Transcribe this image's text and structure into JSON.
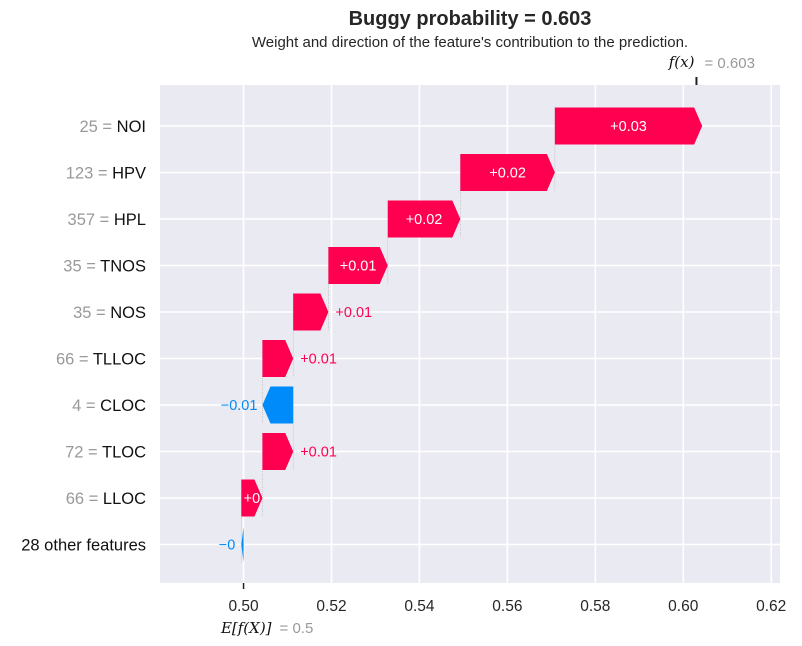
{
  "chart_data": {
    "type": "waterfall",
    "title": "Buggy probability = 0.603",
    "subtitle": "Weight and direction of the feature's contribution to the prediction.",
    "base_value_label": "E[f(X)]",
    "base_value_text": "= 0.5",
    "base_value": 0.5,
    "output_value_label": "f(x)",
    "output_value_text": "= 0.603",
    "output_value": 0.603,
    "xlim": [
      0.481,
      0.622
    ],
    "xticks": [
      0.5,
      0.52,
      0.54,
      0.56,
      0.58,
      0.6,
      0.62
    ],
    "xtick_labels": [
      "0.50",
      "0.52",
      "0.54",
      "0.56",
      "0.58",
      "0.60",
      "0.62"
    ],
    "grid": true,
    "colors": {
      "positive": "#ff0051",
      "negative": "#008bfb",
      "background": "#eaeaf2",
      "grid": "#ffffff",
      "text": "#262626",
      "muted": "#999999"
    },
    "features": [
      {
        "value": "25",
        "name": "NOI",
        "contribution": 0.0335,
        "label": "+0.03"
      },
      {
        "value": "123",
        "name": "HPV",
        "contribution": 0.0215,
        "label": "+0.02"
      },
      {
        "value": "357",
        "name": "HPL",
        "contribution": 0.0165,
        "label": "+0.02"
      },
      {
        "value": "35",
        "name": "TNOS",
        "contribution": 0.0135,
        "label": "+0.01"
      },
      {
        "value": "35",
        "name": "NOS",
        "contribution": 0.008,
        "label": "+0.01"
      },
      {
        "value": "66",
        "name": "TLLOC",
        "contribution": 0.007,
        "label": "+0.01"
      },
      {
        "value": "4",
        "name": "CLOC",
        "contribution": -0.007,
        "label": "−0.01"
      },
      {
        "value": "72",
        "name": "TLOC",
        "contribution": 0.007,
        "label": "+0.01"
      },
      {
        "value": "66",
        "name": "LLOC",
        "contribution": 0.0048,
        "label": "+0"
      },
      {
        "value": "",
        "name": "28 other features",
        "contribution": -0.0005,
        "label": "−0"
      }
    ]
  }
}
